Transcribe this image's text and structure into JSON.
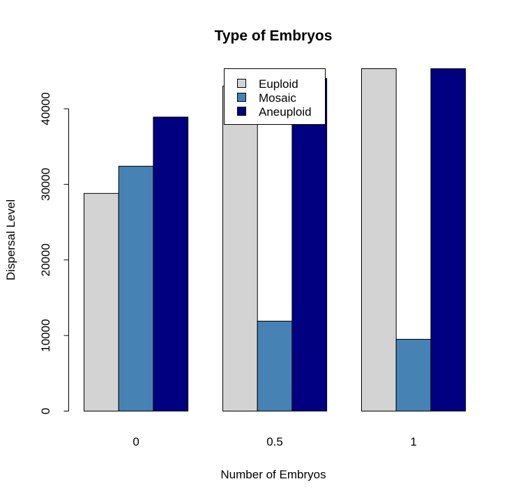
{
  "chart_data": {
    "type": "bar",
    "title": "Type of Embryos",
    "xlabel": "Number of Embryos",
    "ylabel": "Dispersal Level",
    "categories": [
      "0",
      "0.5",
      "1"
    ],
    "series": [
      {
        "name": "Euploid",
        "color": "#d3d3d3",
        "values": [
          28800,
          43000,
          45300
        ]
      },
      {
        "name": "Mosaic",
        "color": "#4682b4",
        "values": [
          32400,
          11900,
          9500
        ]
      },
      {
        "name": "Aneuploid",
        "color": "#000080",
        "values": [
          38900,
          44000,
          45300
        ]
      }
    ],
    "ylim": [
      0,
      45300
    ],
    "yticks": [
      "0",
      "10000",
      "20000",
      "30000",
      "40000"
    ],
    "legend_position": "top-center",
    "grid": false
  }
}
